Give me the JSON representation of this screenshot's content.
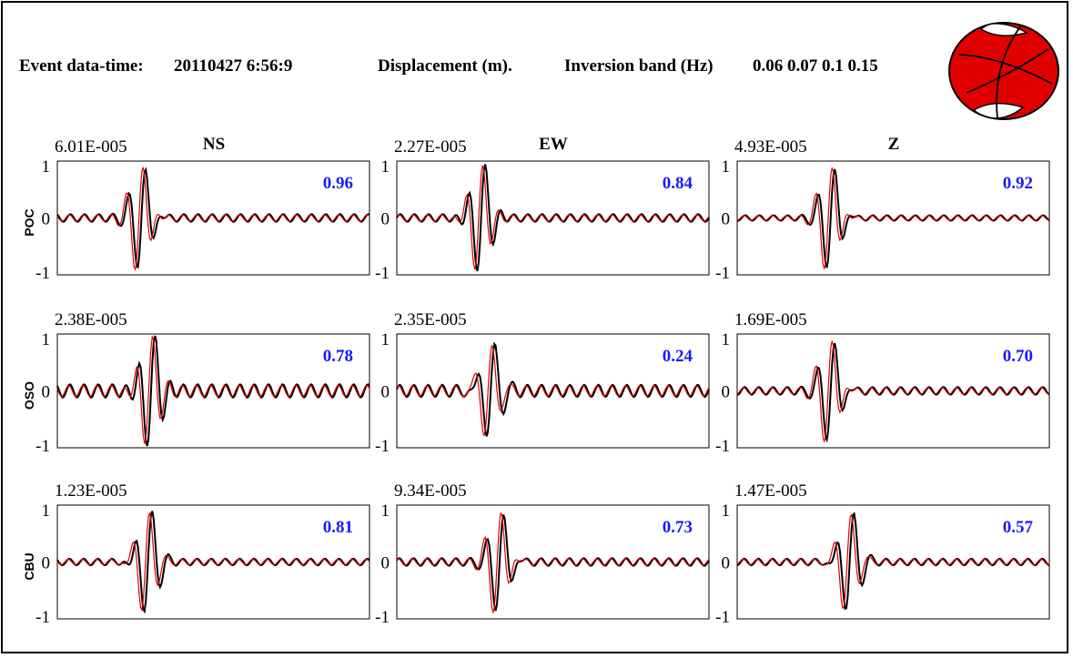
{
  "header": {
    "event_label": "Event data-time:",
    "event_time": "20110427 6:56:9",
    "units": "Displacement (m).",
    "band_label": "Inversion band (Hz)",
    "band_values": "0.06 0.07  0.1 0.15"
  },
  "beachball": {
    "icon": "focal-mechanism-beachball-icon",
    "fill_color": "#e00000",
    "line_color": "#000000"
  },
  "colors": {
    "observed": "#000000",
    "synthetic": "#e00000",
    "correlation": "#1a1aff"
  },
  "chart_data": {
    "type": "line",
    "components": [
      "NS",
      "EW",
      "Z"
    ],
    "stations": [
      "POC",
      "OSO",
      "CBU"
    ],
    "ylim": [
      -1,
      1
    ],
    "yticks": [
      "1",
      "0",
      "-1"
    ],
    "series": [
      "observed",
      "synthetic"
    ],
    "panels": [
      {
        "station": "POC",
        "component": "NS",
        "max_amplitude": "6.01E-005",
        "correlation": "0.96"
      },
      {
        "station": "POC",
        "component": "EW",
        "max_amplitude": "2.27E-005",
        "correlation": "0.84"
      },
      {
        "station": "POC",
        "component": "Z",
        "max_amplitude": "4.93E-005",
        "correlation": "0.92"
      },
      {
        "station": "OSO",
        "component": "NS",
        "max_amplitude": "2.38E-005",
        "correlation": "0.78"
      },
      {
        "station": "OSO",
        "component": "EW",
        "max_amplitude": "2.35E-005",
        "correlation": "0.24"
      },
      {
        "station": "OSO",
        "component": "Z",
        "max_amplitude": "1.69E-005",
        "correlation": "0.70"
      },
      {
        "station": "CBU",
        "component": "NS",
        "max_amplitude": "1.23E-005",
        "correlation": "0.81"
      },
      {
        "station": "CBU",
        "component": "EW",
        "max_amplitude": "9.34E-005",
        "correlation": "0.73"
      },
      {
        "station": "CBU",
        "component": "Z",
        "max_amplitude": "1.47E-005",
        "correlation": "0.57"
      }
    ]
  }
}
